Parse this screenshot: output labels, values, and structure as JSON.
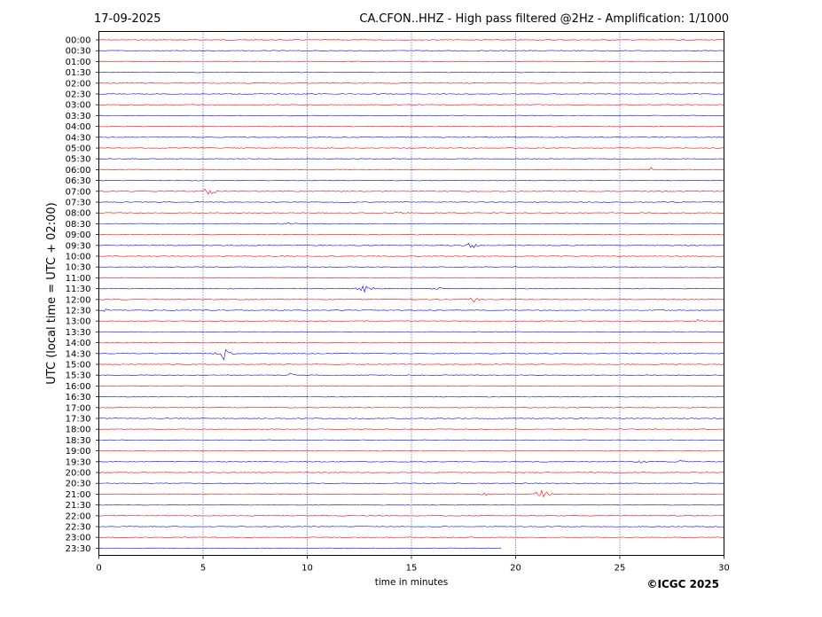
{
  "header": {
    "date": "17-09-2025",
    "station_title": "CA.CFON..HHZ - High pass filtered @2Hz - Amplification: 1/1000"
  },
  "footer": {
    "copyright": "©ICGC 2025"
  },
  "chart_data": {
    "type": "line",
    "title": "CA.CFON..HHZ - High pass filtered @2Hz - Amplification: 1/1000",
    "xlabel": "time in minutes",
    "ylabel": "UTC (local time = UTC + 02:00)",
    "xlim": [
      0,
      30
    ],
    "xticks": [
      0,
      5,
      10,
      15,
      20,
      25,
      30
    ],
    "grid": "vertical dotted at every 5 minutes",
    "row_colors": [
      "#ff0000",
      "#0000ff"
    ],
    "rows": [
      "00:00",
      "00:30",
      "01:00",
      "01:30",
      "02:00",
      "02:30",
      "03:00",
      "03:30",
      "04:00",
      "04:30",
      "05:00",
      "05:30",
      "06:00",
      "06:30",
      "07:00",
      "07:30",
      "08:00",
      "08:30",
      "09:00",
      "09:30",
      "10:00",
      "10:30",
      "11:00",
      "11:30",
      "12:00",
      "12:30",
      "13:00",
      "13:30",
      "14:00",
      "14:30",
      "15:00",
      "15:30",
      "16:00",
      "16:30",
      "17:00",
      "17:30",
      "18:00",
      "18:30",
      "19:00",
      "19:30",
      "20:00",
      "20:30",
      "21:00",
      "21:30",
      "22:00",
      "22:30",
      "23:00",
      "23:30"
    ],
    "last_row_end_minute": 19.3,
    "events": [
      {
        "row": "07:00",
        "minute": 5.3,
        "amp": 1.0
      },
      {
        "row": "08:00",
        "minute": 14.6,
        "amp": 0.35
      },
      {
        "row": "09:30",
        "minute": 17.9,
        "amp": 0.6
      },
      {
        "row": "11:30",
        "minute": 12.8,
        "amp": 1.0
      },
      {
        "row": "11:30",
        "minute": 16.1,
        "amp": 0.35
      },
      {
        "row": "12:00",
        "minute": 18.0,
        "amp": 0.6
      },
      {
        "row": "14:30",
        "minute": 6.0,
        "amp": 0.8
      },
      {
        "row": "21:00",
        "minute": 21.3,
        "amp": 0.9
      },
      {
        "row": "21:00",
        "minute": 18.5,
        "amp": 0.3
      },
      {
        "row": "19:30",
        "minute": 26.0,
        "amp": 0.25
      },
      {
        "row": "19:30",
        "minute": 28.0,
        "amp": 0.25
      },
      {
        "row": "15:30",
        "minute": 9.2,
        "amp": 0.3
      },
      {
        "row": "08:30",
        "minute": 9.1,
        "amp": 0.3
      },
      {
        "row": "06:00",
        "minute": 26.5,
        "amp": 0.3
      },
      {
        "row": "13:00",
        "minute": 28.8,
        "amp": 0.3
      },
      {
        "row": "12:30",
        "minute": 0.2,
        "amp": 0.3
      }
    ]
  }
}
